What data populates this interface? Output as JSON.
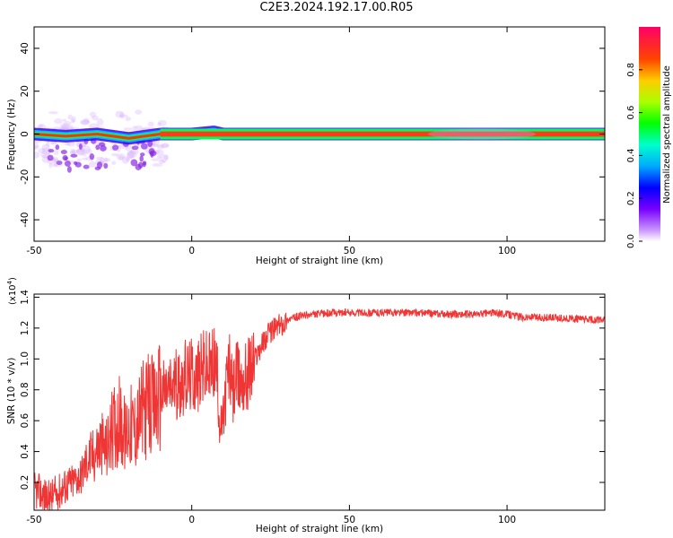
{
  "title": "C2E3.2024.192.17.00.R05",
  "chart_data": [
    {
      "type": "heatmap",
      "title": "C2E3.2024.192.17.00.R05",
      "xlabel": "Height of straight line (km)",
      "ylabel": "Frequency (Hz)",
      "xlim": [
        -50,
        131
      ],
      "ylim": [
        -50,
        50
      ],
      "xticks": [
        "-50",
        "0",
        "50",
        "100"
      ],
      "yticks": [
        "-40",
        "-20",
        "0",
        "20",
        "40"
      ],
      "grid": false,
      "description_series": [
        {
          "name": "",
          "x": [
            -50,
            -40,
            -30,
            -20,
            -15,
            -10,
            0,
            7,
            10,
            20,
            50,
            100,
            131
          ],
          "y": [
            0,
            -1,
            0,
            -2,
            -1,
            0,
            0,
            1,
            0,
            0,
            0,
            0,
            0
          ]
        }
      ],
      "colorbar": {
        "label": "Normalized spectral amplitude",
        "range": [
          0,
          1
        ],
        "ticks": [
          "0.0",
          "0.2",
          "0.4",
          "0.6",
          "0.8"
        ]
      }
    },
    {
      "type": "line",
      "xlabel": "Height of straight line (km)",
      "ylabel": "SNR (10 * v/v)",
      "yscale_label": "(x10",
      "yscale_exp": "4",
      "yscale_close": ")",
      "xlim": [
        -50,
        131
      ],
      "ylim": [
        0.02,
        1.42
      ],
      "xticks": [
        "-50",
        "0",
        "50",
        "100"
      ],
      "yticks": [
        "0.2",
        "0.4",
        "0.6",
        "0.8",
        "1.0",
        "1.2",
        "1.4"
      ],
      "grid": false,
      "color": "#f03535",
      "series": [
        {
          "name": "",
          "x": [
            -50,
            -47,
            -45,
            -42,
            -40,
            -38,
            -35,
            -33,
            -31,
            -29,
            -27,
            -25,
            -23,
            -21,
            -20,
            -18,
            -16,
            -14,
            -12,
            -10,
            -8,
            -6,
            -4,
            -2,
            0,
            2,
            4,
            6,
            7,
            8,
            9,
            10,
            11,
            12,
            13,
            14,
            15,
            17,
            19,
            21,
            23,
            25,
            28,
            31,
            35,
            40,
            45,
            50,
            60,
            70,
            80,
            90,
            95,
            100,
            105,
            110,
            120,
            131
          ],
          "y": [
            0.15,
            0.12,
            0.1,
            0.14,
            0.18,
            0.2,
            0.25,
            0.35,
            0.38,
            0.45,
            0.42,
            0.55,
            0.6,
            0.5,
            0.58,
            0.55,
            0.65,
            0.7,
            0.68,
            0.78,
            0.8,
            0.82,
            0.85,
            0.88,
            0.9,
            0.88,
            0.95,
            0.92,
            1.0,
            0.9,
            0.55,
            0.6,
            0.85,
            0.95,
            0.75,
            0.9,
            0.85,
            0.88,
            0.95,
            1.05,
            1.12,
            1.18,
            1.22,
            1.26,
            1.28,
            1.29,
            1.3,
            1.3,
            1.3,
            1.3,
            1.29,
            1.29,
            1.3,
            1.29,
            1.27,
            1.27,
            1.26,
            1.25
          ]
        }
      ]
    }
  ]
}
